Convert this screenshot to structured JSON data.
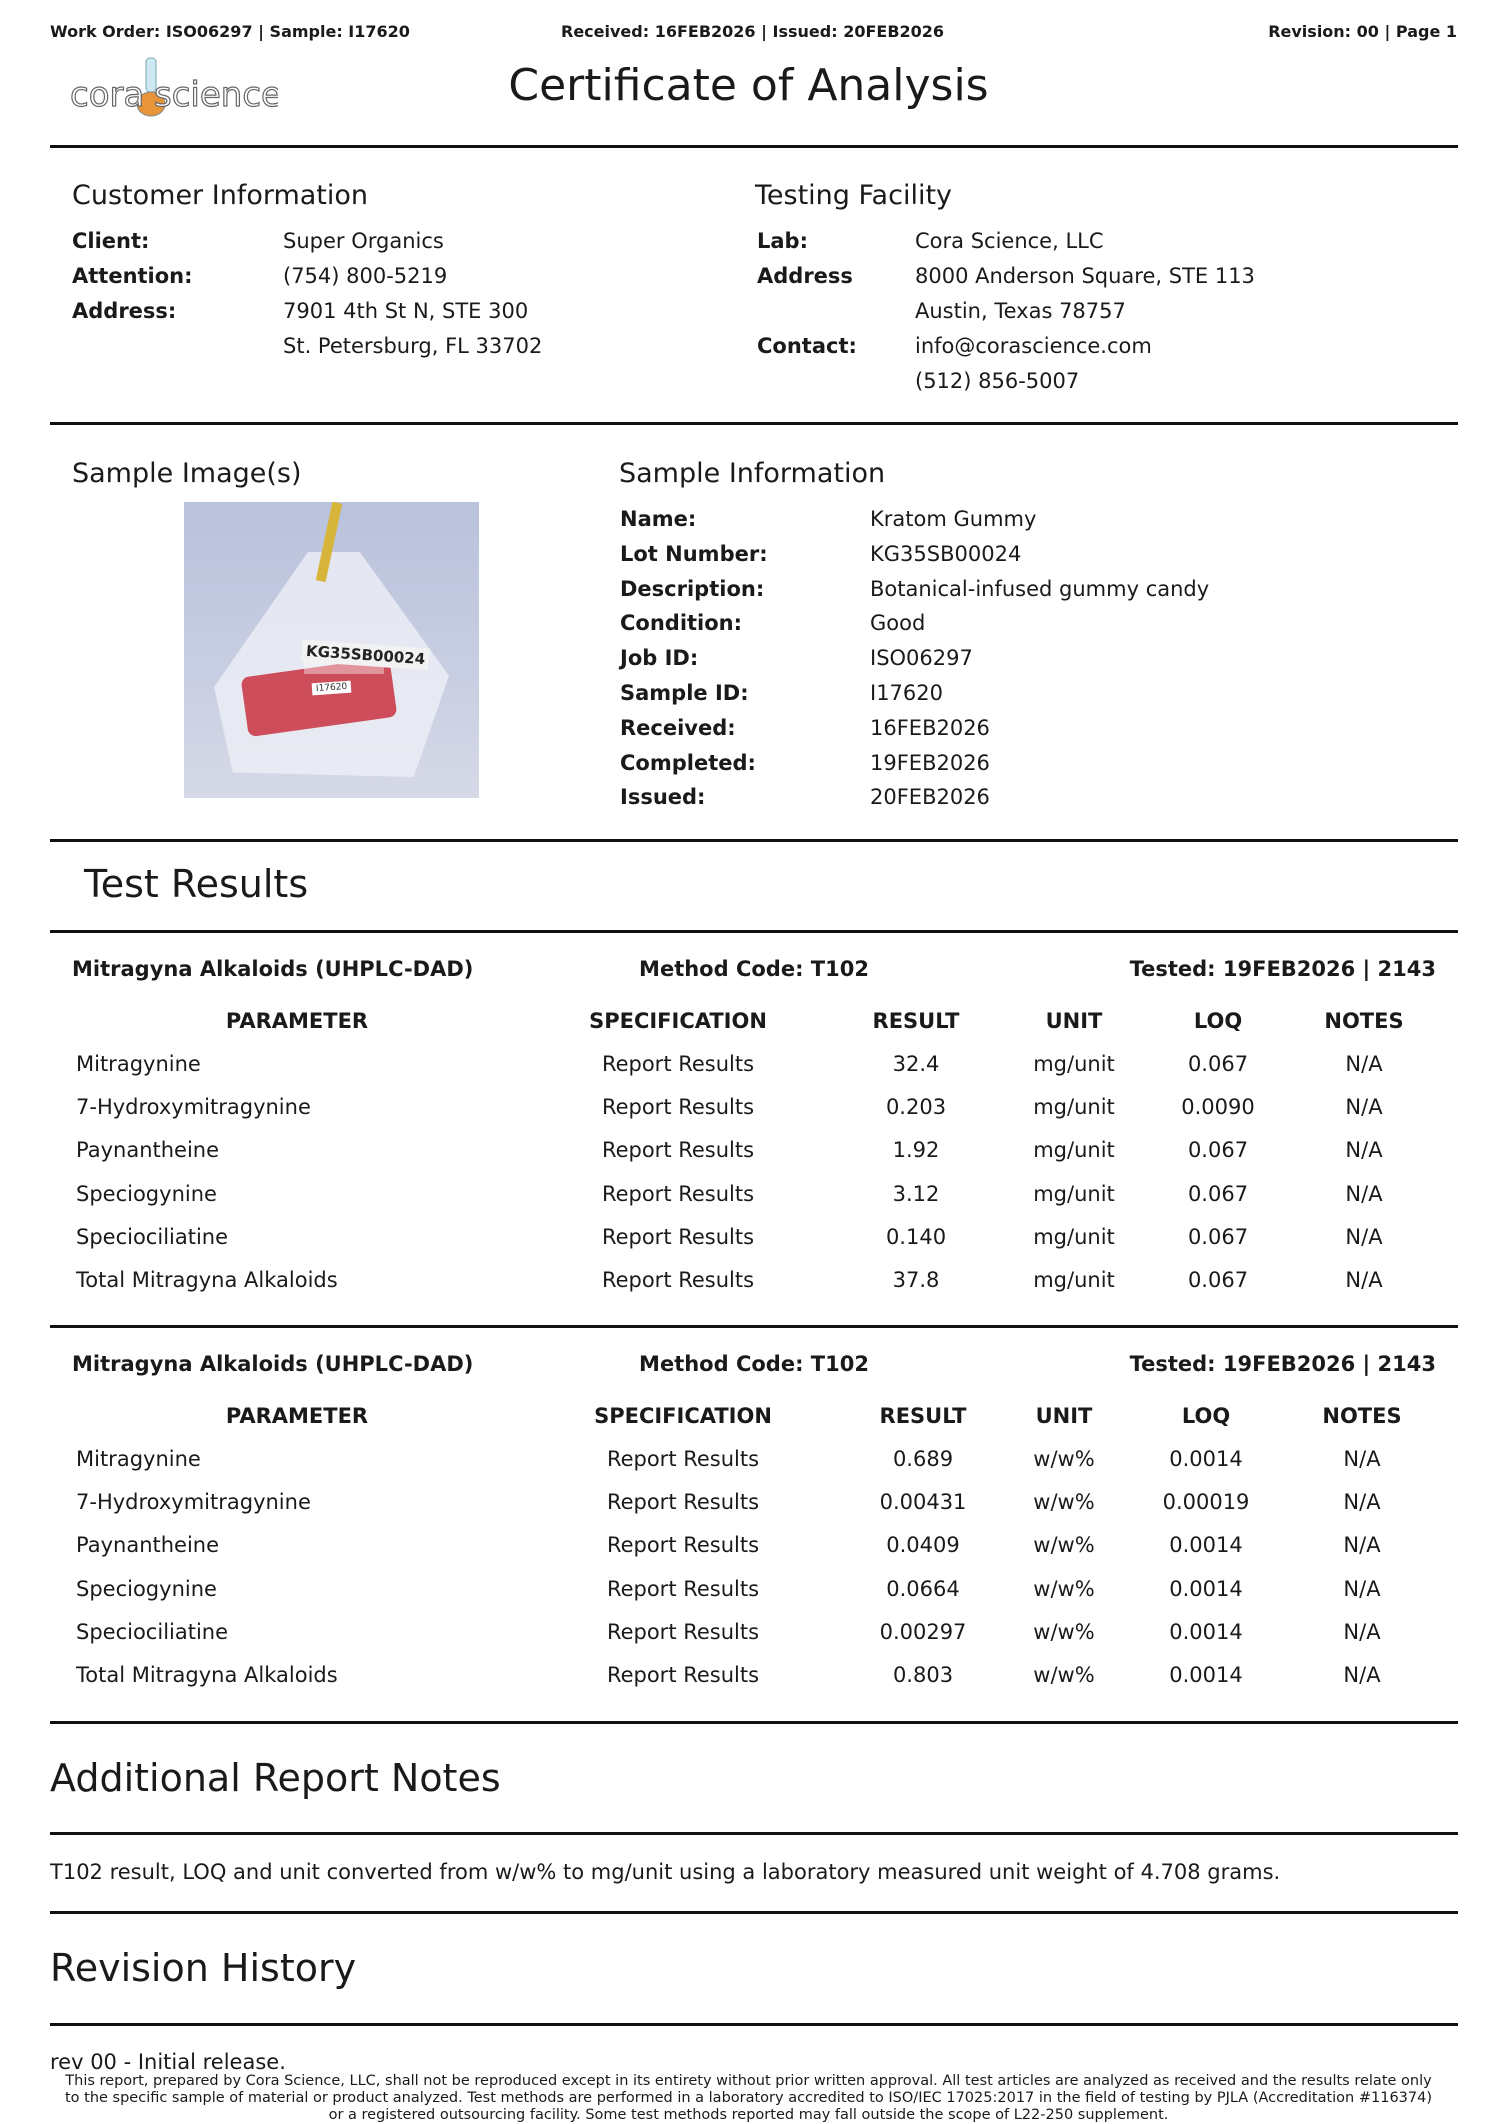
{
  "header": {
    "work_order": "Work Order: ISO06297 | Sample: I17620",
    "dates": "Received: 16FEB2026 | Issued: 20FEB2026",
    "revision": "Revision: 00 | Page 1"
  },
  "logo": {
    "text_left": "cora",
    "text_right": "science",
    "accent": "#e8953a"
  },
  "title": "Certificate of Analysis",
  "customer": {
    "heading": "Customer Information",
    "rows": [
      {
        "label": "Client:",
        "value": "Super Organics"
      },
      {
        "label": "Attention:",
        "value": "(754) 800-5219"
      },
      {
        "label": "Address:",
        "value": "7901 4th St N, STE 300"
      },
      {
        "label": "",
        "value": "St. Petersburg, FL 33702"
      }
    ]
  },
  "facility": {
    "heading": "Testing Facility",
    "rows": [
      {
        "label": "Lab:",
        "value": "Cora Science, LLC"
      },
      {
        "label": "Address",
        "value": "8000 Anderson Square, STE 113"
      },
      {
        "label": "",
        "value": "Austin, Texas 78757"
      },
      {
        "label": "Contact:",
        "value": "info@corascience.com"
      },
      {
        "label": "",
        "value": "(512) 856-5007"
      }
    ]
  },
  "sample_image": {
    "heading": "Sample Image(s)",
    "bag_label": "KG35SB00024",
    "sticker": "I17620"
  },
  "sample_info": {
    "heading": "Sample Information",
    "rows": [
      {
        "label": "Name:",
        "value": "Kratom Gummy"
      },
      {
        "label": "Lot Number:",
        "value": "KG35SB00024"
      },
      {
        "label": "Description:",
        "value": "Botanical-infused gummy candy"
      },
      {
        "label": "Condition:",
        "value": "Good"
      },
      {
        "label": "Job ID:",
        "value": "ISO06297"
      },
      {
        "label": "Sample ID:",
        "value": "I17620"
      },
      {
        "label": "Received:",
        "value": "16FEB2026"
      },
      {
        "label": "Completed:",
        "value": "19FEB2026"
      },
      {
        "label": "Issued:",
        "value": "20FEB2026"
      }
    ]
  },
  "test_results": {
    "heading": "Test Results",
    "tables": [
      {
        "name": "Mitragyna Alkaloids (UHPLC-DAD)",
        "method": "Method Code: T102",
        "tested": "Tested: 19FEB2026 | 2143",
        "columns": [
          "PARAMETER",
          "SPECIFICATION",
          "RESULT",
          "UNIT",
          "LOQ",
          "NOTES"
        ],
        "rows": [
          [
            "Mitragynine",
            "Report Results",
            "32.4",
            "mg/unit",
            "0.067",
            "N/A"
          ],
          [
            "7-Hydroxymitragynine",
            "Report Results",
            "0.203",
            "mg/unit",
            "0.0090",
            "N/A"
          ],
          [
            "Paynantheine",
            "Report Results",
            "1.92",
            "mg/unit",
            "0.067",
            "N/A"
          ],
          [
            "Speciogynine",
            "Report Results",
            "3.12",
            "mg/unit",
            "0.067",
            "N/A"
          ],
          [
            "Speciociliatine",
            "Report Results",
            "0.140",
            "mg/unit",
            "0.067",
            "N/A"
          ],
          [
            "Total Mitragyna Alkaloids",
            "Report Results",
            "37.8",
            "mg/unit",
            "0.067",
            "N/A"
          ]
        ]
      },
      {
        "name": "Mitragyna Alkaloids (UHPLC-DAD)",
        "method": "Method Code: T102",
        "tested": "Tested: 19FEB2026 | 2143",
        "columns": [
          "PARAMETER",
          "SPECIFICATION",
          "RESULT",
          "UNIT",
          "LOQ",
          "NOTES"
        ],
        "rows": [
          [
            "Mitragynine",
            "Report Results",
            "0.689",
            "w/w%",
            "0.0014",
            "N/A"
          ],
          [
            "7-Hydroxymitragynine",
            "Report Results",
            "0.00431",
            "w/w%",
            "0.00019",
            "N/A"
          ],
          [
            "Paynantheine",
            "Report Results",
            "0.0409",
            "w/w%",
            "0.0014",
            "N/A"
          ],
          [
            "Speciogynine",
            "Report Results",
            "0.0664",
            "w/w%",
            "0.0014",
            "N/A"
          ],
          [
            "Speciociliatine",
            "Report Results",
            "0.00297",
            "w/w%",
            "0.0014",
            "N/A"
          ],
          [
            "Total Mitragyna Alkaloids",
            "Report Results",
            "0.803",
            "w/w%",
            "0.0014",
            "N/A"
          ]
        ]
      }
    ]
  },
  "notes": {
    "heading": "Additional Report Notes",
    "text": "T102 result, LOQ and unit converted from w/w% to mg/unit using a laboratory measured unit weight of 4.708 grams."
  },
  "revision_history": {
    "heading": "Revision History",
    "entry": "rev 00 - Initial release."
  },
  "footer": {
    "lines": [
      "This report, prepared by Cora Science, LLC, shall not be reproduced except in its entirety without prior written approval. All test articles are analyzed as received and the results relate only",
      "to the specific sample of material or product analyzed. Test methods are performed in a laboratory accredited to ISO/IEC 17025:2017 in the field of testing by PJLA (Accreditation #116374)",
      "or a registered outsourcing facility. Some test methods reported may fall outside the scope of L22-250 supplement."
    ]
  }
}
